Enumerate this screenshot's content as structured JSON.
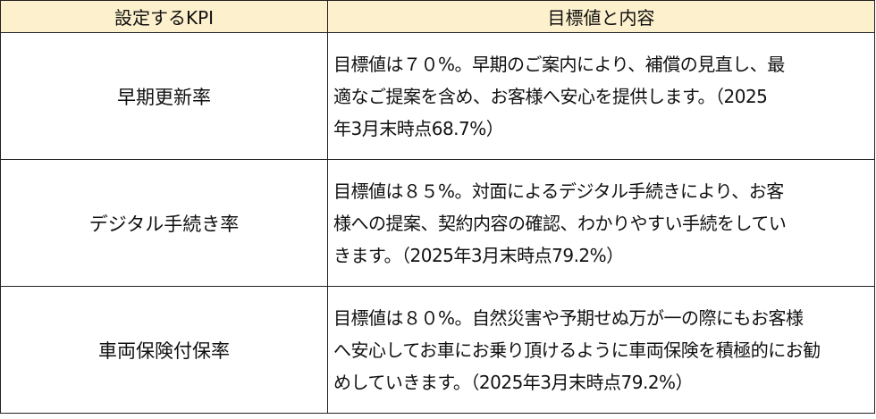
{
  "table": {
    "headers": [
      "設定するKPI",
      "目標値と内容"
    ],
    "rows": [
      {
        "kpi": "早期更新率",
        "lines": [
          "目標値は７０%。早期のご案内により、補償の見直し、最",
          "適なご提案を含め、お客様へ安心を提供します。（2025",
          "年3月末時点68.7%）"
        ]
      },
      {
        "kpi": "デジタル手続き率",
        "lines": [
          "目標値は８５%。対面によるデジタル手続きにより、お客",
          "様への提案、契約内容の確認、わかりやすい手続をしてい",
          "きます。（2025年3月末時点79.2%）"
        ]
      },
      {
        "kpi": "車両保険付保率",
        "lines": [
          "目標値は８０%。自然災害や予期せぬ万が一の際にもお客様",
          "へ安心してお車にお乗り頂けるように車両保険を積極的にお勧",
          "めしていきます。（2025年3月末時点79.2%）"
        ]
      }
    ]
  },
  "colors": {
    "header_bg": "#fdf0cc",
    "border": "#222222"
  }
}
